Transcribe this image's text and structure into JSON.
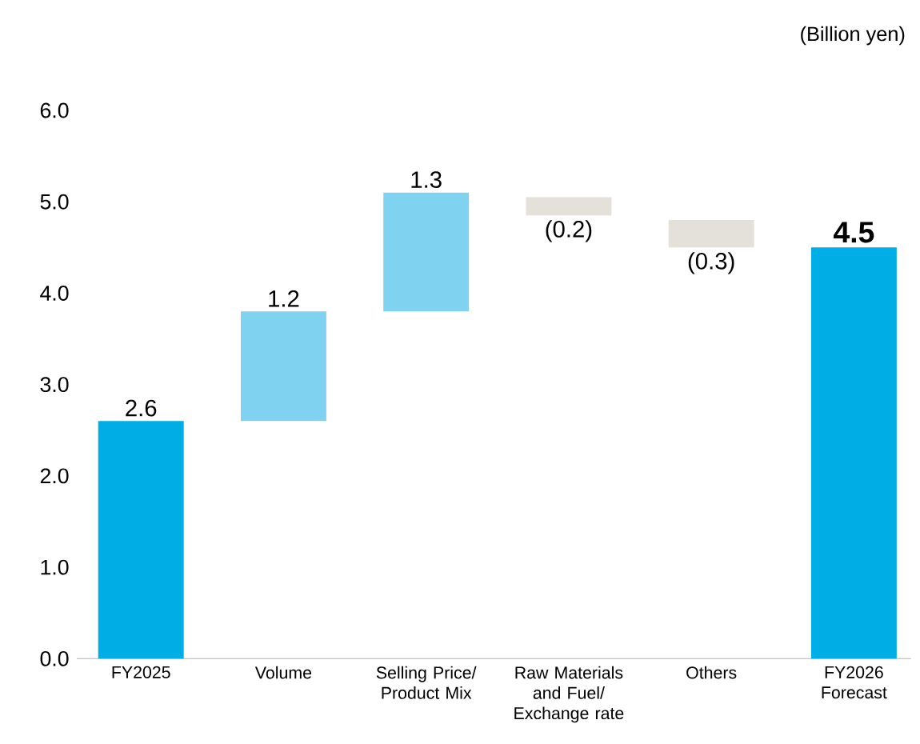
{
  "chart_data": {
    "type": "bar",
    "categories": [
      "FY2025",
      "Volume",
      "Selling Price/ Product Mix",
      "Raw Materials and Fuel/ Exchange rate",
      "Others",
      "FY2026 Forecast"
    ],
    "values": [
      2.6,
      1.2,
      1.3,
      -0.2,
      -0.3,
      4.5
    ],
    "base": [
      0,
      2.6,
      3.8,
      5.05,
      4.8,
      0
    ],
    "colors": [
      "#00aee6",
      "#7fd3f0",
      "#7fd3f0",
      "#e4e0da",
      "#e4e0da",
      "#00aee6"
    ],
    "value_labels": [
      "2.6",
      "1.2",
      "1.3",
      "(0.2)",
      "(0.3)",
      "4.5"
    ],
    "ylim": [
      0,
      6
    ],
    "yticks": [
      {
        "value": 0,
        "label": "0.0"
      },
      {
        "value": 1,
        "label": "1.0"
      },
      {
        "value": 2,
        "label": "2.0"
      },
      {
        "value": 3,
        "label": "3.0"
      },
      {
        "value": 4,
        "label": "4.0"
      },
      {
        "value": 5,
        "label": "5.0"
      },
      {
        "value": 6,
        "label": "6.0"
      }
    ],
    "grid": false,
    "annotations": [
      "(Billion yen)"
    ]
  }
}
